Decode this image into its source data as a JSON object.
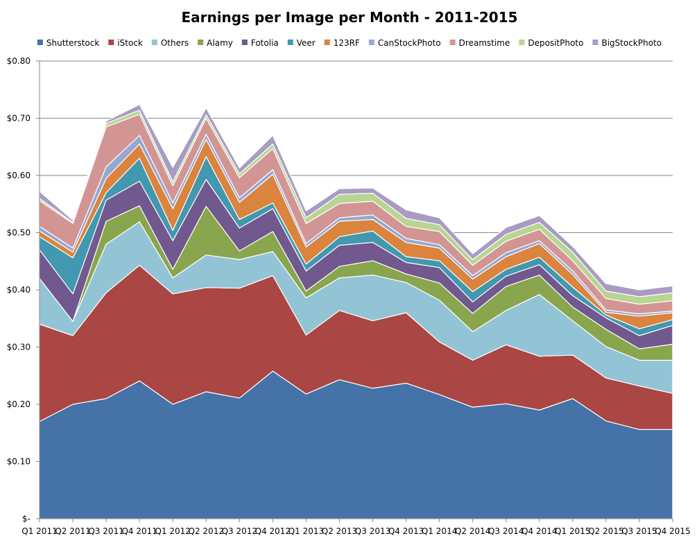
{
  "chart_data": {
    "type": "area",
    "stacked": true,
    "title": "Earnings per Image per Month - 2011-2015",
    "xlabel": "",
    "ylabel": "",
    "ylim": [
      0,
      0.8
    ],
    "y_ticks": [
      0,
      0.1,
      0.2,
      0.3,
      0.4,
      0.5,
      0.6,
      0.7,
      0.8
    ],
    "y_tick_labels": [
      "$-",
      "$0.10",
      "$0.20",
      "$0.30",
      "$0.40",
      "$0.50",
      "$0.60",
      "$0.70",
      "$0.80"
    ],
    "grid": true,
    "legend_position": "top",
    "categories": [
      "Q1 2011",
      "Q2 2011",
      "Q3 2011",
      "Q4 2011",
      "Q1 2012",
      "Q2 2012",
      "Q3 2012",
      "Q4 2012",
      "Q1 2013",
      "Q2 2013",
      "Q3 2013",
      "Q4 2013",
      "Q1 2014",
      "Q2 2014",
      "Q3 2014",
      "Q4 2014",
      "Q1 2015",
      "Q2 2015",
      "Q3 2015",
      "Q4 2015"
    ],
    "series": [
      {
        "name": "Shutterstock",
        "color": "#4572A7",
        "values": [
          0.17,
          0.2,
          0.21,
          0.241,
          0.2,
          0.222,
          0.211,
          0.258,
          0.218,
          0.243,
          0.228,
          0.237,
          0.217,
          0.195,
          0.201,
          0.19,
          0.21,
          0.171,
          0.156,
          0.156
        ]
      },
      {
        "name": "iStock",
        "color": "#AA4643",
        "values": [
          0.17,
          0.12,
          0.185,
          0.202,
          0.193,
          0.182,
          0.192,
          0.167,
          0.103,
          0.121,
          0.118,
          0.123,
          0.092,
          0.082,
          0.103,
          0.094,
          0.076,
          0.075,
          0.076,
          0.063
        ]
      },
      {
        "name": "Others",
        "color": "#93C4D6",
        "values": [
          0.08,
          0.025,
          0.085,
          0.076,
          0.028,
          0.057,
          0.05,
          0.042,
          0.065,
          0.057,
          0.08,
          0.053,
          0.073,
          0.05,
          0.06,
          0.108,
          0.06,
          0.055,
          0.045,
          0.058
        ]
      },
      {
        "name": "Alamy",
        "color": "#89A54E",
        "values": [
          0.0,
          0.0,
          0.04,
          0.028,
          0.015,
          0.085,
          0.015,
          0.035,
          0.012,
          0.02,
          0.025,
          0.015,
          0.03,
          0.032,
          0.042,
          0.034,
          0.024,
          0.03,
          0.02,
          0.028
        ]
      },
      {
        "name": "Fotolia",
        "color": "#71588F",
        "values": [
          0.05,
          0.048,
          0.037,
          0.043,
          0.05,
          0.047,
          0.04,
          0.04,
          0.035,
          0.037,
          0.032,
          0.02,
          0.027,
          0.02,
          0.018,
          0.018,
          0.02,
          0.02,
          0.023,
          0.033
        ]
      },
      {
        "name": "Veer",
        "color": "#4198AF",
        "values": [
          0.023,
          0.063,
          0.013,
          0.04,
          0.018,
          0.04,
          0.015,
          0.01,
          0.012,
          0.015,
          0.02,
          0.01,
          0.012,
          0.018,
          0.012,
          0.013,
          0.015,
          0.005,
          0.012,
          0.01
        ]
      },
      {
        "name": "123RF",
        "color": "#DB843D",
        "values": [
          0.01,
          0.01,
          0.025,
          0.025,
          0.038,
          0.03,
          0.03,
          0.05,
          0.03,
          0.027,
          0.02,
          0.025,
          0.022,
          0.022,
          0.022,
          0.024,
          0.022,
          0.005,
          0.022,
          0.012
        ]
      },
      {
        "name": "CanStockPhoto",
        "color": "#95A7D3",
        "values": [
          0.008,
          0.007,
          0.02,
          0.015,
          0.01,
          0.009,
          0.008,
          0.008,
          0.006,
          0.006,
          0.008,
          0.007,
          0.006,
          0.006,
          0.007,
          0.005,
          0.006,
          0.004,
          0.004,
          0.003
        ]
      },
      {
        "name": "Dreamstime",
        "color": "#D39594",
        "values": [
          0.045,
          0.043,
          0.07,
          0.037,
          0.03,
          0.028,
          0.035,
          0.037,
          0.035,
          0.025,
          0.024,
          0.021,
          0.023,
          0.018,
          0.02,
          0.02,
          0.018,
          0.02,
          0.017,
          0.018
        ]
      },
      {
        "name": "DepositPhoto",
        "color": "#B8D593",
        "values": [
          0.004,
          0.002,
          0.006,
          0.007,
          0.007,
          0.006,
          0.007,
          0.008,
          0.01,
          0.016,
          0.014,
          0.014,
          0.012,
          0.01,
          0.012,
          0.012,
          0.015,
          0.013,
          0.013,
          0.014
        ]
      },
      {
        "name": "BigStockPhoto",
        "color": "#A99BC4",
        "values": [
          0.012,
          0.004,
          0.004,
          0.01,
          0.025,
          0.012,
          0.01,
          0.015,
          0.012,
          0.01,
          0.009,
          0.015,
          0.012,
          0.01,
          0.012,
          0.012,
          0.01,
          0.013,
          0.012,
          0.012
        ]
      }
    ]
  }
}
